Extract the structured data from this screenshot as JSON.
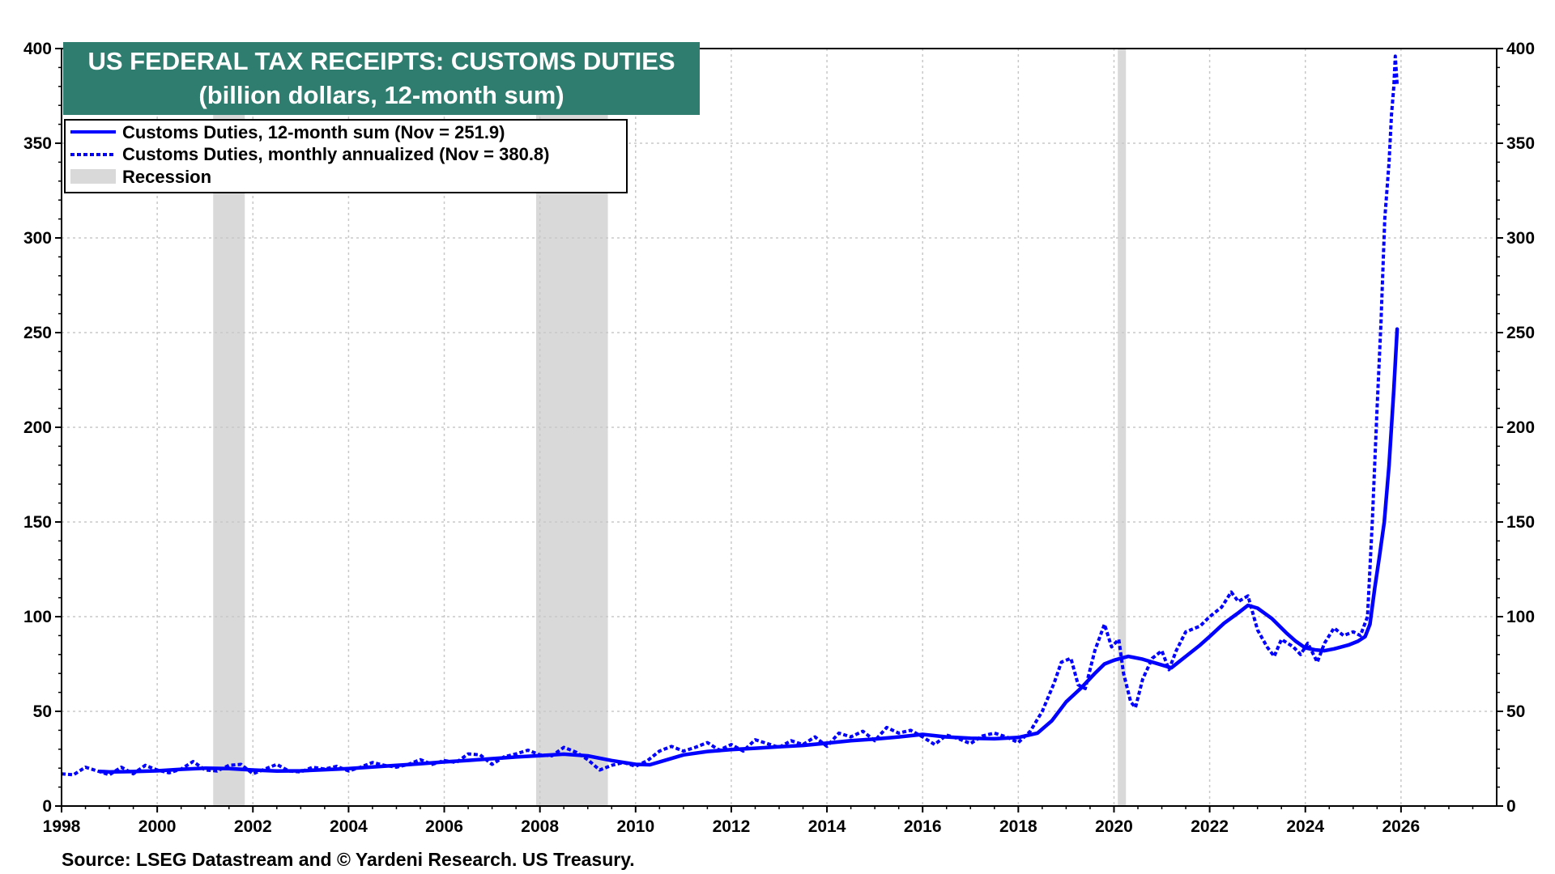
{
  "chart_data": {
    "type": "line",
    "title": "US FEDERAL TAX RECEIPTS: CUSTOMS DUTIES",
    "subtitle": "(billion dollars, 12-month sum)",
    "source": "Source: LSEG Datastream and © Yardeni Research. US Treasury.",
    "xlim": [
      1998,
      2028
    ],
    "ylim": [
      0,
      400
    ],
    "x_ticks": [
      1998,
      2000,
      2002,
      2004,
      2006,
      2008,
      2010,
      2012,
      2014,
      2016,
      2018,
      2020,
      2022,
      2024,
      2026
    ],
    "y_ticks": [
      0,
      50,
      100,
      150,
      200,
      250,
      300,
      350,
      400
    ],
    "grid": true,
    "legend_position": "top-left",
    "recession_label": "Recession",
    "recessions": [
      [
        2001.17,
        2001.83
      ],
      [
        2007.92,
        2009.42
      ],
      [
        2020.08,
        2020.25
      ]
    ],
    "series": [
      {
        "name": "Customs Duties, 12-month sum (Nov = 251.9)",
        "style": "solid",
        "color": "#0000ff",
        "points": [
          [
            1998.8,
            18.3
          ],
          [
            1999.0,
            18.0
          ],
          [
            1999.5,
            18.2
          ],
          [
            2000.0,
            18.6
          ],
          [
            2000.5,
            19.4
          ],
          [
            2001.0,
            20.0
          ],
          [
            2001.5,
            19.8
          ],
          [
            2002.0,
            19.0
          ],
          [
            2002.5,
            18.5
          ],
          [
            2003.0,
            18.6
          ],
          [
            2003.5,
            19.2
          ],
          [
            2004.0,
            19.8
          ],
          [
            2004.5,
            20.6
          ],
          [
            2005.0,
            21.5
          ],
          [
            2005.5,
            22.3
          ],
          [
            2006.0,
            23.3
          ],
          [
            2006.5,
            24.1
          ],
          [
            2007.0,
            25.0
          ],
          [
            2007.5,
            25.9
          ],
          [
            2008.0,
            26.6
          ],
          [
            2008.5,
            27.4
          ],
          [
            2009.0,
            26.5
          ],
          [
            2009.5,
            24.0
          ],
          [
            2010.0,
            22.0
          ],
          [
            2010.3,
            21.8
          ],
          [
            2010.6,
            24.0
          ],
          [
            2011.0,
            27.0
          ],
          [
            2011.5,
            28.8
          ],
          [
            2012.0,
            29.8
          ],
          [
            2012.5,
            30.5
          ],
          [
            2013.0,
            31.3
          ],
          [
            2013.5,
            32.0
          ],
          [
            2014.0,
            33.2
          ],
          [
            2014.5,
            34.5
          ],
          [
            2015.0,
            35.4
          ],
          [
            2015.5,
            36.5
          ],
          [
            2016.0,
            37.8
          ],
          [
            2016.5,
            36.5
          ],
          [
            2017.0,
            35.8
          ],
          [
            2017.5,
            35.5
          ],
          [
            2018.0,
            36.2
          ],
          [
            2018.4,
            38.5
          ],
          [
            2018.7,
            45.0
          ],
          [
            2019.0,
            55.0
          ],
          [
            2019.3,
            62.0
          ],
          [
            2019.6,
            70.0
          ],
          [
            2019.8,
            75.0
          ],
          [
            2020.0,
            77.0
          ],
          [
            2020.3,
            79.0
          ],
          [
            2020.6,
            77.5
          ],
          [
            2021.0,
            74.5
          ],
          [
            2021.2,
            73.0
          ],
          [
            2021.5,
            79.0
          ],
          [
            2021.8,
            85.0
          ],
          [
            2022.0,
            89.5
          ],
          [
            2022.3,
            96.5
          ],
          [
            2022.6,
            102.0
          ],
          [
            2022.8,
            106.0
          ],
          [
            2023.0,
            104.5
          ],
          [
            2023.3,
            99.0
          ],
          [
            2023.6,
            91.5
          ],
          [
            2023.8,
            87.0
          ],
          [
            2024.0,
            83.5
          ],
          [
            2024.2,
            82.5
          ],
          [
            2024.4,
            82.0
          ],
          [
            2024.6,
            83.0
          ],
          [
            2024.9,
            85.0
          ],
          [
            2025.1,
            87.0
          ],
          [
            2025.25,
            89.5
          ],
          [
            2025.35,
            96.0
          ],
          [
            2025.45,
            115.0
          ],
          [
            2025.55,
            132.0
          ],
          [
            2025.65,
            150.0
          ],
          [
            2025.75,
            180.0
          ],
          [
            2025.85,
            220.0
          ],
          [
            2025.92,
            251.9
          ]
        ]
      },
      {
        "name": "Customs Duties, monthly annualized (Nov = 380.8)",
        "style": "dotted",
        "color": "#0000ff",
        "points": [
          [
            1998.0,
            17.0
          ],
          [
            1998.25,
            16.5
          ],
          [
            1998.5,
            20.5
          ],
          [
            1998.75,
            18.5
          ],
          [
            1999.0,
            16.5
          ],
          [
            1999.25,
            20.5
          ],
          [
            1999.5,
            17.0
          ],
          [
            1999.75,
            21.5
          ],
          [
            2000.0,
            19.0
          ],
          [
            2000.25,
            17.5
          ],
          [
            2000.5,
            19.5
          ],
          [
            2000.75,
            23.5
          ],
          [
            2001.0,
            19.0
          ],
          [
            2001.25,
            18.5
          ],
          [
            2001.5,
            21.5
          ],
          [
            2001.75,
            22.0
          ],
          [
            2002.0,
            17.0
          ],
          [
            2002.25,
            19.5
          ],
          [
            2002.5,
            22.0
          ],
          [
            2002.75,
            18.5
          ],
          [
            2003.0,
            18.0
          ],
          [
            2003.25,
            20.5
          ],
          [
            2003.5,
            19.5
          ],
          [
            2003.75,
            21.0
          ],
          [
            2004.0,
            18.5
          ],
          [
            2004.25,
            20.5
          ],
          [
            2004.5,
            23.0
          ],
          [
            2004.75,
            21.5
          ],
          [
            2005.0,
            20.5
          ],
          [
            2005.25,
            22.0
          ],
          [
            2005.5,
            24.5
          ],
          [
            2005.75,
            22.0
          ],
          [
            2006.0,
            24.0
          ],
          [
            2006.25,
            23.0
          ],
          [
            2006.5,
            27.5
          ],
          [
            2006.75,
            27.0
          ],
          [
            2007.0,
            22.0
          ],
          [
            2007.25,
            26.0
          ],
          [
            2007.5,
            27.5
          ],
          [
            2007.75,
            29.5
          ],
          [
            2008.0,
            27.0
          ],
          [
            2008.25,
            26.5
          ],
          [
            2008.5,
            31.0
          ],
          [
            2008.75,
            28.5
          ],
          [
            2009.0,
            24.5
          ],
          [
            2009.25,
            19.0
          ],
          [
            2009.5,
            21.5
          ],
          [
            2009.75,
            23.0
          ],
          [
            2010.0,
            21.0
          ],
          [
            2010.25,
            24.0
          ],
          [
            2010.5,
            29.0
          ],
          [
            2010.75,
            31.5
          ],
          [
            2011.0,
            29.0
          ],
          [
            2011.25,
            31.0
          ],
          [
            2011.5,
            33.5
          ],
          [
            2011.75,
            29.5
          ],
          [
            2012.0,
            32.5
          ],
          [
            2012.25,
            29.0
          ],
          [
            2012.5,
            35.0
          ],
          [
            2012.75,
            33.0
          ],
          [
            2013.0,
            31.0
          ],
          [
            2013.25,
            34.5
          ],
          [
            2013.5,
            32.5
          ],
          [
            2013.75,
            36.5
          ],
          [
            2014.0,
            31.5
          ],
          [
            2014.25,
            38.5
          ],
          [
            2014.5,
            36.5
          ],
          [
            2014.75,
            39.5
          ],
          [
            2015.0,
            34.5
          ],
          [
            2015.25,
            41.5
          ],
          [
            2015.5,
            38.5
          ],
          [
            2015.75,
            40.0
          ],
          [
            2016.0,
            36.5
          ],
          [
            2016.25,
            32.5
          ],
          [
            2016.5,
            37.5
          ],
          [
            2016.75,
            35.5
          ],
          [
            2017.0,
            33.0
          ],
          [
            2017.25,
            37.0
          ],
          [
            2017.5,
            38.5
          ],
          [
            2017.75,
            36.5
          ],
          [
            2018.0,
            33.5
          ],
          [
            2018.25,
            39.5
          ],
          [
            2018.5,
            50.0
          ],
          [
            2018.75,
            65.0
          ],
          [
            2018.9,
            76.0
          ],
          [
            2019.1,
            78.0
          ],
          [
            2019.25,
            64.0
          ],
          [
            2019.4,
            62.0
          ],
          [
            2019.6,
            82.0
          ],
          [
            2019.8,
            96.0
          ],
          [
            2019.95,
            84.0
          ],
          [
            2020.1,
            88.0
          ],
          [
            2020.2,
            70.0
          ],
          [
            2020.35,
            55.0
          ],
          [
            2020.45,
            52.0
          ],
          [
            2020.6,
            67.0
          ],
          [
            2020.8,
            78.0
          ],
          [
            2021.0,
            82.0
          ],
          [
            2021.15,
            72.0
          ],
          [
            2021.3,
            82.0
          ],
          [
            2021.5,
            92.0
          ],
          [
            2021.8,
            95.0
          ],
          [
            2022.0,
            100.0
          ],
          [
            2022.25,
            105.0
          ],
          [
            2022.45,
            113.0
          ],
          [
            2022.6,
            108.0
          ],
          [
            2022.8,
            111.0
          ],
          [
            2023.0,
            93.0
          ],
          [
            2023.2,
            84.0
          ],
          [
            2023.35,
            79.0
          ],
          [
            2023.5,
            88.0
          ],
          [
            2023.75,
            84.0
          ],
          [
            2023.9,
            80.0
          ],
          [
            2024.05,
            86.0
          ],
          [
            2024.25,
            76.0
          ],
          [
            2024.4,
            86.0
          ],
          [
            2024.6,
            94.0
          ],
          [
            2024.8,
            90.0
          ],
          [
            2025.0,
            92.0
          ],
          [
            2025.15,
            90.0
          ],
          [
            2025.3,
            100.0
          ],
          [
            2025.4,
            150.0
          ],
          [
            2025.5,
            210.0
          ],
          [
            2025.58,
            255.0
          ],
          [
            2025.66,
            310.0
          ],
          [
            2025.75,
            340.0
          ],
          [
            2025.8,
            365.0
          ],
          [
            2025.85,
            380.0
          ],
          [
            2025.88,
            396.0
          ],
          [
            2025.92,
            380.8
          ]
        ]
      }
    ]
  },
  "colors": {
    "line": "#0000ff",
    "recession": "#d9d9d9",
    "title_bg": "#2e7d6e",
    "title_text": "#ffffff",
    "grid": "#c8c8c8"
  }
}
